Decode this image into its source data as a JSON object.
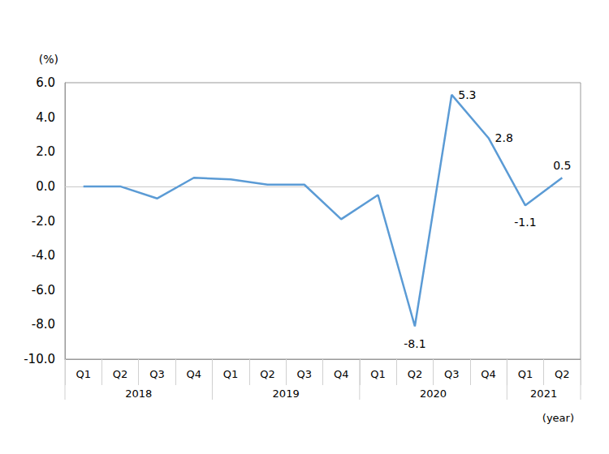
{
  "chart_data": {
    "type": "line",
    "y_label": "(%)",
    "x_label": "(year)",
    "categories": [
      "Q1",
      "Q2",
      "Q3",
      "Q4",
      "Q1",
      "Q2",
      "Q3",
      "Q4",
      "Q1",
      "Q2",
      "Q3",
      "Q4",
      "Q1",
      "Q2"
    ],
    "groups": [
      {
        "label": "2018",
        "span": 4
      },
      {
        "label": "2019",
        "span": 4
      },
      {
        "label": "2020",
        "span": 4
      },
      {
        "label": "2021",
        "span": 2
      }
    ],
    "values": [
      0.0,
      0.0,
      -0.7,
      0.5,
      0.4,
      0.1,
      0.1,
      -1.9,
      -0.5,
      -8.1,
      5.3,
      2.8,
      -1.1,
      0.5
    ],
    "value_labels": [
      null,
      null,
      null,
      null,
      null,
      null,
      null,
      null,
      null,
      "-8.1",
      "5.3",
      "2.8",
      "-1.1",
      "0.5"
    ],
    "data_labels": true,
    "color": "#5b9bd5",
    "ylim": [
      -10,
      6
    ],
    "yticks": [
      {
        "value": -10,
        "label": "-10.0"
      },
      {
        "value": -8,
        "label": "-8.0"
      },
      {
        "value": -6,
        "label": "-6.0"
      },
      {
        "value": -4,
        "label": "-4.0"
      },
      {
        "value": -2,
        "label": "-2.0"
      },
      {
        "value": 0,
        "label": "0.0"
      },
      {
        "value": 2,
        "label": "2.0"
      },
      {
        "value": 4,
        "label": "4.0"
      },
      {
        "value": 6,
        "label": "6.0"
      }
    ],
    "grid": false
  }
}
